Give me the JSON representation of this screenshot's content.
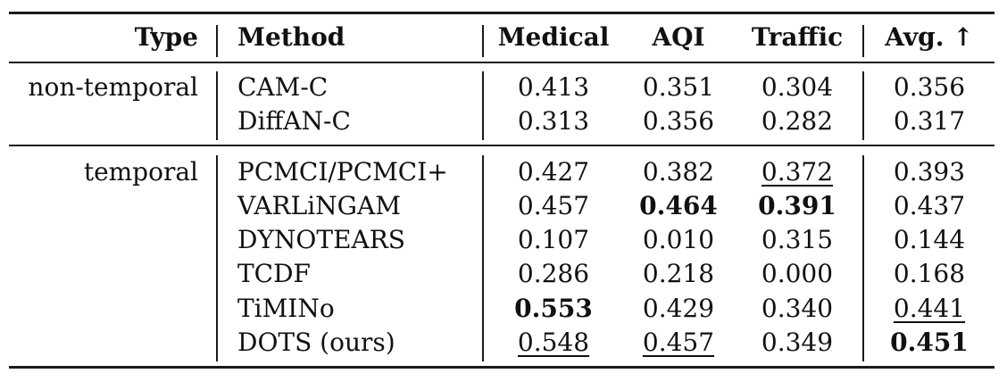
{
  "table": {
    "headers": {
      "type": "Type",
      "method": "Method",
      "medical": "Medical",
      "aqi": "AQI",
      "traffic": "Traffic",
      "avg": "Avg. ↑"
    },
    "groups": [
      {
        "type": "non-temporal",
        "rows": [
          {
            "method": "CAM-C",
            "medical": "0.413",
            "aqi": "0.351",
            "traffic": "0.304",
            "avg": "0.356"
          },
          {
            "method": "DiffAN-C",
            "medical": "0.313",
            "aqi": "0.356",
            "traffic": "0.282",
            "avg": "0.317"
          }
        ]
      },
      {
        "type": "temporal",
        "rows": [
          {
            "method": "PCMCI/PCMCI+",
            "medical": "0.427",
            "aqi": "0.382",
            "traffic": "0.372",
            "avg": "0.393"
          },
          {
            "method": "VARLiNGAM",
            "medical": "0.457",
            "aqi": "0.464",
            "traffic": "0.391",
            "avg": "0.437"
          },
          {
            "method": "DYNOTEARS",
            "medical": "0.107",
            "aqi": "0.010",
            "traffic": "0.315",
            "avg": "0.144"
          },
          {
            "method": "TCDF",
            "medical": "0.286",
            "aqi": "0.218",
            "traffic": "0.000",
            "avg": "0.168"
          },
          {
            "method": "TiMINo",
            "medical": "0.553",
            "aqi": "0.429",
            "traffic": "0.340",
            "avg": "0.441"
          },
          {
            "method": "DOTS (ours)",
            "medical": "0.548",
            "aqi": "0.457",
            "traffic": "0.349",
            "avg": "0.451"
          }
        ]
      }
    ]
  }
}
